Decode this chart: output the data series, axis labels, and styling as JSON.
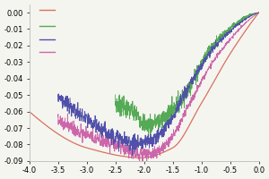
{
  "xlim": [
    -4.0,
    0.0
  ],
  "ylim": [
    -0.09,
    0.005
  ],
  "xticks": [
    -4.0,
    -3.5,
    -3.0,
    -2.5,
    -2.0,
    -1.5,
    -1.0,
    -0.5,
    0.0
  ],
  "yticks": [
    0.0,
    -0.01,
    -0.02,
    -0.03,
    -0.04,
    -0.05,
    -0.06,
    -0.07,
    -0.08,
    -0.09
  ],
  "line_colors": [
    "#d97060",
    "#55aa55",
    "#5050aa",
    "#cc66aa"
  ],
  "background": "#f5f5f0",
  "figsize": [
    3.0,
    2.0
  ],
  "dpi": 100,
  "legend_entries": [
    {
      "x": [
        -3.82,
        -3.55
      ],
      "y": [
        0.0015,
        0.0015
      ]
    },
    {
      "x": [
        -3.82,
        -3.55
      ],
      "y": [
        -0.008,
        -0.008
      ]
    },
    {
      "x": [
        -3.82,
        -3.55
      ],
      "y": [
        -0.016,
        -0.016
      ]
    },
    {
      "x": [
        -3.82,
        -3.55
      ],
      "y": [
        -0.024,
        -0.024
      ]
    }
  ]
}
